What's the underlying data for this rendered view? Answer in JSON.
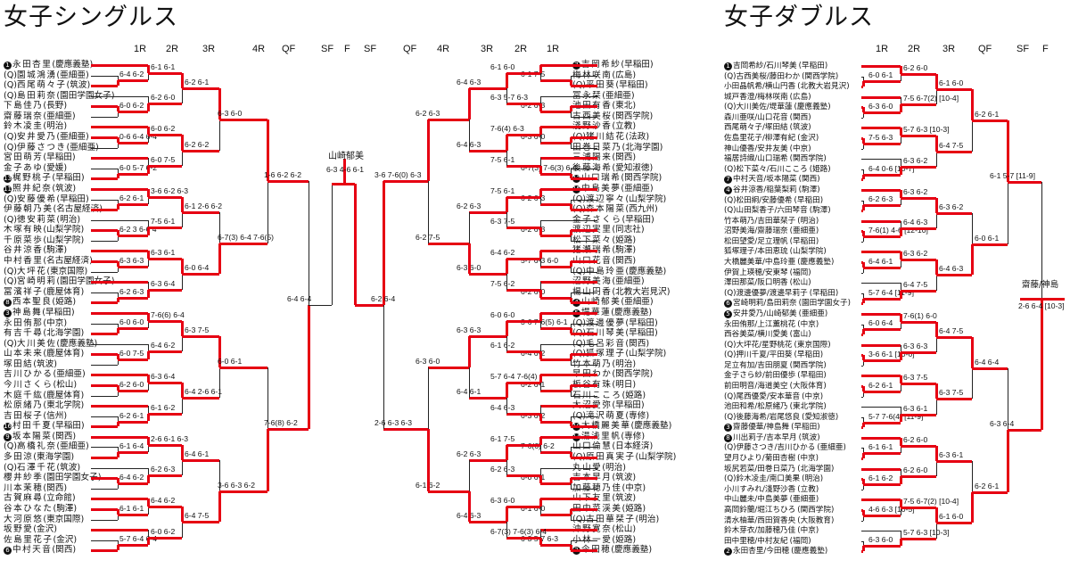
{
  "singles": {
    "title": "女子シングルス",
    "rounds": [
      "1R",
      "2R",
      "3R",
      "4R",
      "QF",
      "SF",
      "F",
      "SF",
      "QF",
      "4R",
      "3R",
      "2R",
      "1R"
    ],
    "left": [
      {
        "seed": "1",
        "q": "",
        "name": "永田杏里",
        "school": "慶應義塾"
      },
      {
        "seed": "",
        "q": "(Q)",
        "name": "園城鴻湧",
        "school": "亜細亜"
      },
      {
        "seed": "",
        "q": "(Q)",
        "name": "西尾萌々子",
        "school": "筑波"
      },
      {
        "seed": "",
        "q": "(Q)",
        "name": "島田莉奈",
        "school": "園田学園女子"
      },
      {
        "seed": "",
        "q": "",
        "name": "下島佳乃",
        "school": "長野"
      },
      {
        "seed": "",
        "q": "",
        "name": "齋藤瑞奈",
        "school": "亜細亜"
      },
      {
        "seed": "",
        "q": "",
        "name": "鈴木凌圭",
        "school": "明治"
      },
      {
        "seed": "",
        "q": "(Q)",
        "name": "安井愛乃",
        "school": "亜細亜"
      },
      {
        "seed": "",
        "q": "(Q)",
        "name": "伊藤さつき",
        "school": "亜細亜"
      },
      {
        "seed": "",
        "q": "",
        "name": "宮田萌芳",
        "school": "早稲田"
      },
      {
        "seed": "",
        "q": "",
        "name": "金子あゆ",
        "school": "愛媛"
      },
      {
        "seed": "13",
        "q": "",
        "name": "梶野桃子",
        "school": "早稲田"
      },
      {
        "seed": "11",
        "q": "",
        "name": "照井紀奈",
        "school": "筑波"
      },
      {
        "seed": "",
        "q": "(Q)",
        "name": "安藤優希",
        "school": "早稲田"
      },
      {
        "seed": "",
        "q": "",
        "name": "伊藤朝乃美",
        "school": "名古屋経済"
      },
      {
        "seed": "",
        "q": "(Q)",
        "name": "徳安莉菜",
        "school": "明治"
      },
      {
        "seed": "",
        "q": "",
        "name": "木塚有映",
        "school": "山梨学院"
      },
      {
        "seed": "",
        "q": "",
        "name": "千原菜歩",
        "school": "山梨学院"
      },
      {
        "seed": "",
        "q": "",
        "name": "谷井涼香",
        "school": "駒澤"
      },
      {
        "seed": "",
        "q": "",
        "name": "中村香里",
        "school": "名古屋経済"
      },
      {
        "seed": "",
        "q": "(Q)",
        "name": "大坪花",
        "school": "東京国際"
      },
      {
        "seed": "",
        "q": "(Q)",
        "name": "宮崎明莉",
        "school": "園田学園女子"
      },
      {
        "seed": "",
        "q": "",
        "name": "冨濱祥子",
        "school": "鹿屋体育"
      },
      {
        "seed": "8",
        "q": "",
        "name": "西本聖良",
        "school": "姫路"
      },
      {
        "seed": "3",
        "q": "",
        "name": "神島舞",
        "school": "早稲田"
      },
      {
        "seed": "",
        "q": "",
        "name": "永田侑那",
        "school": "中京"
      },
      {
        "seed": "",
        "q": "",
        "name": "有吉千尋",
        "school": "北海学園"
      },
      {
        "seed": "",
        "q": "(Q)",
        "name": "大川美佐",
        "school": "慶應義塾"
      },
      {
        "seed": "",
        "q": "",
        "name": "山本未来",
        "school": "鹿屋体育"
      },
      {
        "seed": "",
        "q": "",
        "name": "塚田結",
        "school": "筑波"
      },
      {
        "seed": "",
        "q": "",
        "name": "吉川ひかる",
        "school": "亜細亜"
      },
      {
        "seed": "",
        "q": "",
        "name": "今川さくら",
        "school": "松山"
      },
      {
        "seed": "",
        "q": "",
        "name": "木庭千紘",
        "school": "鹿屋体育"
      },
      {
        "seed": "",
        "q": "",
        "name": "松原緒乃",
        "school": "東北学院"
      },
      {
        "seed": "",
        "q": "",
        "name": "吉田桜子",
        "school": "信州"
      },
      {
        "seed": "16",
        "q": "",
        "name": "村田千夏",
        "school": "早稲田"
      },
      {
        "seed": "9",
        "q": "",
        "name": "坂本陽菜",
        "school": "関西"
      },
      {
        "seed": "",
        "q": "(Q)",
        "name": "高橋礼奈",
        "school": "亜細亜"
      },
      {
        "seed": "",
        "q": "",
        "name": "多田涼",
        "school": "東海学園"
      },
      {
        "seed": "",
        "q": "(Q)",
        "name": "石澤千花",
        "school": "筑波"
      },
      {
        "seed": "",
        "q": "",
        "name": "櫻井紗季",
        "school": "園田学園女子"
      },
      {
        "seed": "",
        "q": "",
        "name": "川本茉穂",
        "school": "関西"
      },
      {
        "seed": "",
        "q": "",
        "name": "古賀麻尋",
        "school": "立命館"
      },
      {
        "seed": "",
        "q": "",
        "name": "谷本ひなた",
        "school": "駒澤"
      },
      {
        "seed": "",
        "q": "",
        "name": "大河原悠",
        "school": "東京国際"
      },
      {
        "seed": "",
        "q": "",
        "name": "坂野愛",
        "school": "金沢"
      },
      {
        "seed": "",
        "q": "",
        "name": "佐島里花子",
        "school": "金沢"
      },
      {
        "seed": "6",
        "q": "",
        "name": "中村天音",
        "school": "関西"
      }
    ],
    "right": [
      {
        "seed": "7",
        "q": "",
        "name": "吉岡希紗",
        "school": "早稲田"
      },
      {
        "seed": "",
        "q": "",
        "name": "梅林咲南",
        "school": "広島"
      },
      {
        "seed": "",
        "q": "(Q)",
        "name": "平田葵",
        "school": "早稲田"
      },
      {
        "seed": "",
        "q": "",
        "name": "冨永栞",
        "school": "亜細亜"
      },
      {
        "seed": "",
        "q": "",
        "name": "池田有香",
        "school": "東北"
      },
      {
        "seed": "",
        "q": "",
        "name": "古西美桜",
        "school": "関西学院"
      },
      {
        "seed": "",
        "q": "",
        "name": "淺野沙香",
        "school": "立教"
      },
      {
        "seed": "",
        "q": "(Q)",
        "name": "猪川結花",
        "school": "法政"
      },
      {
        "seed": "",
        "q": "",
        "name": "田巻日菜乃",
        "school": "北海学園"
      },
      {
        "seed": "",
        "q": "",
        "name": "三浦陽来",
        "school": "関西"
      },
      {
        "seed": "",
        "q": "",
        "name": "後藤海希",
        "school": "愛知淑徳"
      },
      {
        "seed": "12",
        "q": "",
        "name": "山口瑞希",
        "school": "関西学院"
      },
      {
        "seed": "15",
        "q": "",
        "name": "中島美夢",
        "school": "亜細亜"
      },
      {
        "seed": "",
        "q": "(Q)",
        "name": "渡辺寧々",
        "school": "山梨学院"
      },
      {
        "seed": "",
        "q": "(Q)",
        "name": "森本陽菜",
        "school": "西九州"
      },
      {
        "seed": "",
        "q": "",
        "name": "金子さくら",
        "school": "早稲田"
      },
      {
        "seed": "",
        "q": "",
        "name": "渡辺実里",
        "school": "同志社"
      },
      {
        "seed": "",
        "q": "",
        "name": "松下菜々",
        "school": "姫路"
      },
      {
        "seed": "",
        "q": "",
        "name": "猪瀬瑞希",
        "school": "駒澤"
      },
      {
        "seed": "",
        "q": "",
        "name": "山口花音",
        "school": "関西"
      },
      {
        "seed": "",
        "q": "(Q)",
        "name": "中島玲亜",
        "school": "慶應義塾"
      },
      {
        "seed": "",
        "q": "",
        "name": "沼野美海",
        "school": "亜細亜"
      },
      {
        "seed": "",
        "q": "",
        "name": "楊山円香",
        "school": "北教大岩見沢"
      },
      {
        "seed": "4",
        "q": "",
        "name": "山崎郁美",
        "school": "亜細亜"
      },
      {
        "seed": "5",
        "q": "",
        "name": "堤華蓮",
        "school": "慶應義塾"
      },
      {
        "seed": "",
        "q": "(Q)",
        "name": "渡邊優夢",
        "school": "早稲田"
      },
      {
        "seed": "",
        "q": "(Q)",
        "name": "石川琴美",
        "school": "早稲田"
      },
      {
        "seed": "",
        "q": "(Q)",
        "name": "毛呂彩音",
        "school": "関西"
      },
      {
        "seed": "",
        "q": "(Q)",
        "name": "狐塚理子",
        "school": "山梨学院"
      },
      {
        "seed": "",
        "q": "",
        "name": "竹本萌乃",
        "school": "明治"
      },
      {
        "seed": "",
        "q": "",
        "name": "早田わか",
        "school": "関西学院"
      },
      {
        "seed": "",
        "q": "",
        "name": "板谷有珠",
        "school": "明日"
      },
      {
        "seed": "",
        "q": "",
        "name": "石川こころ",
        "school": "姫路"
      },
      {
        "seed": "",
        "q": "",
        "name": "大沼愛弥",
        "school": "早稲田"
      },
      {
        "seed": "",
        "q": "(Q)",
        "name": "滝沢萌夏",
        "school": "専修"
      },
      {
        "seed": "10",
        "q": "",
        "name": "大橋麗美華",
        "school": "慶應義塾"
      },
      {
        "seed": "14",
        "q": "",
        "name": "湯浅里帆",
        "school": "専修"
      },
      {
        "seed": "",
        "q": "",
        "name": "山口倫慧",
        "school": "日本経済"
      },
      {
        "seed": "",
        "q": "(Q)",
        "name": "原田真実子",
        "school": "山梨学院"
      },
      {
        "seed": "",
        "q": "",
        "name": "丸山愛",
        "school": "明治"
      },
      {
        "seed": "",
        "q": "",
        "name": "吉本早月",
        "school": "筑波"
      },
      {
        "seed": "",
        "q": "",
        "name": "加藤穂乃佳",
        "school": "中京"
      },
      {
        "seed": "",
        "q": "",
        "name": "山下友里",
        "school": "筑波"
      },
      {
        "seed": "",
        "q": "",
        "name": "田中菜渓美",
        "school": "姫路"
      },
      {
        "seed": "",
        "q": "(Q)",
        "name": "古田華栞子",
        "school": "明治"
      },
      {
        "seed": "",
        "q": "",
        "name": "沖野寛奈",
        "school": "松山"
      },
      {
        "seed": "",
        "q": "",
        "name": "小林一愛",
        "school": "姫路"
      },
      {
        "seed": "2",
        "q": "",
        "name": "今田穂",
        "school": "慶應義塾"
      }
    ],
    "left_scores": {
      "r1": [
        "6-4 6-2",
        "6-0 6-2",
        "6-1 6-1",
        "6-2 6-0",
        "0-6 6-4 6-4",
        "6-0 5-7 6-2",
        "6-0 6-2",
        "6-0 7-5",
        "6-2 6-1",
        "6-2 3 6-6 4",
        "3-6 6-2 6-3",
        "7-5 6-1",
        "6-3 6-3",
        "6-2 6-3",
        "6-3 6-1",
        "6-3 6-4",
        "6-0 6-0",
        "6-0 7-5",
        "7-6(6) 6-4",
        "6-4 6-2",
        "6-2 6-0",
        "6-2 6-1",
        "6-3 6-4",
        "6-1 6-2",
        "6-1 6-4",
        "6-4 6-2",
        "2-6 6-1 6-3",
        "6-2 6-3",
        "6-1 6-1",
        "5-7 6-4 6-4"
      ],
      "r3": [
        "6-2 6-1",
        "6-2 6-2",
        "6-1 2-6 6-2",
        "6-0 6-4",
        "6-3 7-5",
        "6-4 2-6 6-1",
        "6-4 6-1",
        "6-4 7-5",
        "4-6 6-3 6-3"
      ],
      "r4": [
        "6-3 6-0",
        "6-7(3) 6-4 7-6(5)",
        "6-0 6-1",
        "3-6 6-3 6-2",
        "1-6 6-2 6-2",
        "7-6(8) 6-2",
        "6-4 6-3",
        "6-1 6-1"
      ],
      "qf": [
        "6-4 6-4"
      ]
    },
    "right_scores": {
      "r1": [
        "6-1 7-5",
        "6-2 6-3",
        "6-1 6-0",
        "6-3 5-7 6-3",
        "6-3 6-0",
        "6-7(3) 7-6(3) 6-4",
        "7-6(4) 6-3",
        "7-5 6-1",
        "6-2 6-3",
        "6-2 6-3",
        "7-5 6-1",
        "6-3 7-5",
        "5-7 6-3 6-0",
        "6-2 6-0",
        "6-4 6-2",
        "7-5 6-2",
        "3-6 7-6(5) 6-1",
        "6-4 6-2",
        "6-0 6-0",
        "6-1 6-2",
        "6-2 6-1",
        "6-3 6-2",
        "5-7 6-4 7-6(4)",
        "6-4 6-3",
        "7-6(6) 6-2",
        "6-0 6-1"
      ],
      "r3": [
        "6-4 6-3",
        "6-4 6-3",
        "6-2 6-3",
        "6-3 6-0",
        "6-3 6-3",
        "6-4 6-1",
        "6-2 6-3",
        "6-4 6-3",
        "6-1 6-2",
        "6-4 6-3"
      ],
      "r4": [
        "6-2 6-3",
        "6-2 7-5",
        "6-3 6-0",
        "6-1 6-2",
        "3-6 7-6(0) 6-3",
        "2-6 6-3 6-3",
        "6-2 2-6 6-1",
        "6-3 6-3 6-2",
        "6-3 6-0",
        "6-2 6-3"
      ],
      "qf": [
        "6-2 6-4",
        "7-6(7) 6-1"
      ]
    },
    "champion": {
      "name": "山崎郁美",
      "score": "6-3 4-6 6-1"
    }
  },
  "doubles": {
    "title": "女子ダブルス",
    "rounds": [
      "1R",
      "2R",
      "3R",
      "QF",
      "SF",
      "F"
    ],
    "pairs": [
      {
        "seed": "1",
        "text": "吉岡希紗/石川琴美",
        "school": "早稲田"
      },
      {
        "seed": "",
        "text": "(Q)古西美桜/藤田わか",
        "school": "関西学院"
      },
      {
        "seed": "",
        "text": "小田晶帆希/横山円香",
        "school": "北教大岩見沢"
      },
      {
        "seed": "",
        "text": "城戸香澄/梅林咲南",
        "school": "広島"
      },
      {
        "seed": "",
        "text": "(Q)大川美佐/堤華蓮",
        "school": "慶應義塾"
      },
      {
        "seed": "",
        "text": "森川亜咲/山口花音",
        "school": "関西"
      },
      {
        "seed": "",
        "text": "西尾萌々子/塚田結",
        "school": "筑波"
      },
      {
        "seed": "",
        "text": "佐島里花子/柳澤有紀",
        "school": "金沢"
      },
      {
        "seed": "",
        "text": "神山優香/安井友美",
        "school": "中京"
      },
      {
        "seed": "",
        "text": "福居詩織/山口瑞希",
        "school": "関西学院"
      },
      {
        "seed": "",
        "text": "(Q)松下菜々/石川こころ",
        "school": "姫路"
      },
      {
        "seed": "7",
        "text": "中村天音/坂本陽菜",
        "school": "関西"
      },
      {
        "seed": "4",
        "text": "谷井涼香/稲葉梨莉",
        "school": "駒澤"
      },
      {
        "seed": "",
        "text": "(Q)松田絅/安藤優希",
        "school": "早稲田"
      },
      {
        "seed": "",
        "text": "(Q)山田梨香子/六田琴音",
        "school": "駒澤"
      },
      {
        "seed": "",
        "text": "竹本萌乃/吉田華栞子",
        "school": "明治"
      },
      {
        "seed": "",
        "text": "沼野美海/齋藤瑞奈",
        "school": "亜細亜"
      },
      {
        "seed": "",
        "text": "松田望愛/足立理帆",
        "school": "早稲田"
      },
      {
        "seed": "",
        "text": "狐塚理子/本田恵琉",
        "school": "山梨学院"
      },
      {
        "seed": "",
        "text": "大橋麗美華/中島玲亜",
        "school": "慶應義塾"
      },
      {
        "seed": "",
        "text": "伊賀上瑛穂/安東琴",
        "school": "福岡"
      },
      {
        "seed": "",
        "text": "澤田那菜/阪口明香",
        "school": "松山"
      },
      {
        "seed": "",
        "text": "(Q)渡邊優夢/渡邊早莉子",
        "school": "早稲田"
      },
      {
        "seed": "6",
        "text": "宮崎明莉/島田莉奈",
        "school": "園田学園女子"
      },
      {
        "seed": "5",
        "text": "安井愛乃/山崎郁美",
        "school": "亜細亜"
      },
      {
        "seed": "",
        "text": "永田侑那/上江薫桃花",
        "school": "中京"
      },
      {
        "seed": "",
        "text": "西谷美菜/横川愛美",
        "school": "富山"
      },
      {
        "seed": "",
        "text": "(Q)大坪花/星野桃花",
        "school": "東京国際"
      },
      {
        "seed": "",
        "text": "(Q)押川千夏/平田葵",
        "school": "早稲田"
      },
      {
        "seed": "",
        "text": "足立有加/吉田朋夏",
        "school": "関西学院"
      },
      {
        "seed": "",
        "text": "金子さら紗/前田優歩",
        "school": "早稲田"
      },
      {
        "seed": "",
        "text": "前田明音/海道美空",
        "school": "大阪体育"
      },
      {
        "seed": "",
        "text": "(Q)尾西優愛/安本華音",
        "school": "中京"
      },
      {
        "seed": "",
        "text": "池田和希/松原緒乃",
        "school": "東北学院"
      },
      {
        "seed": "",
        "text": "(Q)後藤海希/岩尾悠良",
        "school": "愛知淑徳"
      },
      {
        "seed": "3",
        "text": "齋藤優華/神島舞",
        "school": "早稲田"
      },
      {
        "seed": "8",
        "text": "川出莉子/吉本早月",
        "school": "筑波"
      },
      {
        "seed": "",
        "text": "(Q)伊藤さつき/吉川ひかる",
        "school": "亜細亜"
      },
      {
        "seed": "",
        "text": "望月ひより/菊田杏樹",
        "school": "中京"
      },
      {
        "seed": "",
        "text": "坂尻若菜/田巻日菜乃",
        "school": "北海学園"
      },
      {
        "seed": "",
        "text": "(Q)鈴木凌圭/南口美果",
        "school": "明治"
      },
      {
        "seed": "",
        "text": "小川すみれ/淺野沙香",
        "school": "立教"
      },
      {
        "seed": "",
        "text": "中山麗未/中島美夢",
        "school": "亜細亜"
      },
      {
        "seed": "",
        "text": "高岡鈴蘭/堀江ちひろ",
        "school": "関西学院"
      },
      {
        "seed": "",
        "text": "清水柚華/西田賀香央",
        "school": "大阪教育"
      },
      {
        "seed": "",
        "text": "鈴木芽衣/加藤穂乃佳",
        "school": "中京"
      },
      {
        "seed": "",
        "text": "田中里穂/中村友紀",
        "school": "福岡"
      },
      {
        "seed": "2",
        "text": "永田杏里/今田穂",
        "school": "慶應義塾"
      }
    ],
    "scores": {
      "r1": [
        "6-0 6-1",
        "6-3 6-0",
        "7-5 6-3",
        "6-4 0-6 [10-7]",
        "6-2 6-3",
        "7-6(1) 4-6 [12-10]",
        "6-4 6-1",
        "5-7 6-4 [11-9]",
        "6-0 6-4",
        "3-6 6-1 [10-6]",
        "6-2 6-1",
        "5-7 7-6(4) [11-9]",
        "6-1 6-1",
        "6-1 6-2",
        "4-6 6-3 [10-5]",
        "6-3 6-0",
        "6-3 6-0",
        "6-1 6-2",
        "6-0 6-2",
        "6-3 6-2",
        "6-0 6-2",
        "6-3 6-2",
        "3-6 6-4 [10-7]",
        "3-6 6-4 [12-10]",
        "6-3 6-2",
        "6-4 6-1"
      ],
      "r2": [
        "6-2 6-0",
        "7-5 6-7(2) [10-4]",
        "5-7 6-3 [10-3]",
        "6-3 6-2",
        "6-3 6-2",
        "6-4 6-3",
        "6-3 6-2",
        "6-4 7-5",
        "7-6(1) 6-0",
        "6-3 6-3",
        "6-3 7-5",
        "6-3 6-1",
        "6-2 6-0"
      ],
      "r3": [
        "6-1 6-0",
        "6-4 7-5",
        "6-3 6-2",
        "6-4 6-3",
        "6-4 7-5",
        "6-3 7-5",
        "6-3 6-1"
      ],
      "qf": [
        "6-2 6-1",
        "6-0 6-1",
        "6-4 6-4"
      ],
      "sf": [
        "6-1 5-7 [11-9]",
        "6-3 6-4"
      ],
      "f": "2-6 6-4 [10-3]"
    },
    "champion": {
      "name": "齋藤/神島"
    }
  }
}
